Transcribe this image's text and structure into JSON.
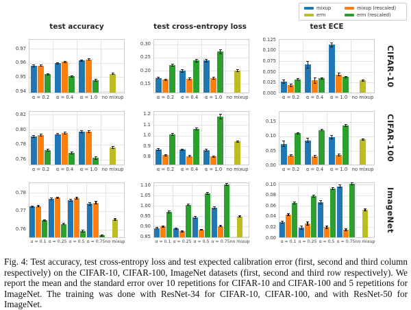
{
  "legend": {
    "items": [
      {
        "label": "mixup",
        "color": "#1f77b4"
      },
      {
        "label": "mixup (rescaled)",
        "color": "#ff7f0e"
      },
      {
        "label": "erm",
        "color": "#bcbd22"
      },
      {
        "label": "erm (rescaled)",
        "color": "#2ca02c"
      }
    ]
  },
  "caption": {
    "text": "Fig. 4: Test accuracy, test cross-entropy loss and test expected calibration error (first, second and third column respectively) on the CIFAR-10, CIFAR-100, ImageNet datasets (first, second and third row respectively). We report the mean and the standard error over 10 repetitions for CIFAR-10 and CIFAR-100 and 5 repetitions for ImageNet. The training was done with ResNet-34 for CIFAR-10, CIFAR-100, and with ResNet-50 for ImageNet."
  },
  "chart_data": [
    {
      "type": "bar",
      "title": "test accuracy",
      "dataset": "CIFAR-10",
      "grid": true,
      "categories": [
        "α = 0.2",
        "α = 0.4",
        "α = 1.0",
        "no mixup"
      ],
      "yticks": [
        0.94,
        0.95,
        0.96,
        0.97
      ],
      "ytick_labels": [
        "0.94",
        "0.95",
        "0.96",
        "0.97"
      ],
      "ylim": [
        0.9386,
        0.9768
      ],
      "series": [
        {
          "name": "mixup",
          "color": "#1f77b4",
          "values": [
            0.958,
            0.9597,
            0.9616,
            null
          ],
          "errors": [
            0.0007,
            0.0006,
            0.0005,
            null
          ]
        },
        {
          "name": "mixup (rescaled)",
          "color": "#ff7f0e",
          "values": [
            0.9582,
            0.9607,
            0.9625,
            null
          ],
          "errors": [
            0.0005,
            0.0005,
            0.0005,
            null
          ]
        },
        {
          "name": "erm (rescaled)",
          "color": "#2ca02c",
          "values": [
            0.952,
            0.9506,
            0.948,
            null
          ],
          "errors": [
            0.0005,
            0.0005,
            0.0007,
            null
          ]
        },
        {
          "name": "erm",
          "color": "#bcbd22",
          "values": [
            null,
            null,
            null,
            0.9523
          ],
          "errors": [
            null,
            null,
            null,
            0.0006
          ]
        }
      ]
    },
    {
      "type": "bar",
      "title": "test cross-entropy loss",
      "dataset": "CIFAR-10",
      "grid": true,
      "categories": [
        "α = 0.2",
        "α = 0.4",
        "α = 1.0",
        "no mixup"
      ],
      "yticks": [
        0.15,
        0.2,
        0.25,
        0.3
      ],
      "ytick_labels": [
        "0.15",
        "0.20",
        "0.25",
        "0.30"
      ],
      "ylim": [
        0.114,
        0.32
      ],
      "series": [
        {
          "name": "mixup",
          "color": "#1f77b4",
          "values": [
            0.172,
            0.199,
            0.239,
            null
          ],
          "errors": [
            0.003,
            0.006,
            0.005,
            null
          ]
        },
        {
          "name": "mixup (rescaled)",
          "color": "#ff7f0e",
          "values": [
            0.165,
            0.168,
            0.171,
            null
          ],
          "errors": [
            0.003,
            0.004,
            0.004,
            null
          ]
        },
        {
          "name": "erm (rescaled)",
          "color": "#2ca02c",
          "values": [
            0.221,
            0.238,
            0.272,
            null
          ],
          "errors": [
            0.003,
            0.004,
            0.007,
            null
          ]
        },
        {
          "name": "erm",
          "color": "#bcbd22",
          "values": [
            null,
            null,
            null,
            0.2
          ],
          "errors": [
            null,
            null,
            null,
            0.004
          ]
        }
      ]
    },
    {
      "type": "bar",
      "title": "test ECE",
      "dataset": "CIFAR-10",
      "grid": true,
      "categories": [
        "α = 0.2",
        "α = 0.4",
        "α = 1.0",
        "no mixup"
      ],
      "yticks": [
        0.0,
        0.025,
        0.05,
        0.075,
        0.1,
        0.125
      ],
      "ytick_labels": [
        "0.000",
        "0.025",
        "0.050",
        "0.075",
        "0.100",
        "0.125"
      ],
      "ylim": [
        0,
        0.127
      ],
      "series": [
        {
          "name": "mixup",
          "color": "#1f77b4",
          "values": [
            0.028,
            0.067,
            0.114,
            null
          ],
          "errors": [
            0.004,
            0.008,
            0.005,
            null
          ]
        },
        {
          "name": "mixup (rescaled)",
          "color": "#ff7f0e",
          "values": [
            0.019,
            0.03,
            0.044,
            null
          ],
          "errors": [
            0.003,
            0.006,
            0.003,
            null
          ]
        },
        {
          "name": "erm (rescaled)",
          "color": "#2ca02c",
          "values": [
            0.033,
            0.035,
            0.038,
            null
          ],
          "errors": [
            0.002,
            0.002,
            0.002,
            null
          ]
        },
        {
          "name": "erm",
          "color": "#bcbd22",
          "values": [
            null,
            null,
            null,
            0.03
          ],
          "errors": [
            null,
            null,
            null,
            0.002
          ]
        }
      ]
    },
    {
      "type": "bar",
      "title": "test accuracy",
      "dataset": "CIFAR-100",
      "grid": true,
      "categories": [
        "α = 0.2",
        "α = 0.4",
        "α = 1.0",
        "no mixup"
      ],
      "yticks": [
        0.76,
        0.78,
        0.8,
        0.82
      ],
      "ytick_labels": [
        "0.76",
        "0.78",
        "0.80",
        "0.82"
      ],
      "ylim": [
        0.7523,
        0.8247
      ],
      "series": [
        {
          "name": "mixup",
          "color": "#1f77b4",
          "values": [
            0.791,
            0.794,
            0.797,
            null
          ],
          "errors": [
            0.0015,
            0.0013,
            0.0013,
            null
          ]
        },
        {
          "name": "mixup (rescaled)",
          "color": "#ff7f0e",
          "values": [
            0.793,
            0.7955,
            0.7975,
            null
          ],
          "errors": [
            0.0013,
            0.0013,
            0.0013,
            null
          ]
        },
        {
          "name": "erm (rescaled)",
          "color": "#2ca02c",
          "values": [
            0.7725,
            0.769,
            0.762,
            null
          ],
          "errors": [
            0.0013,
            0.0015,
            0.0015,
            null
          ]
        },
        {
          "name": "erm",
          "color": "#bcbd22",
          "values": [
            null,
            null,
            null,
            0.776
          ],
          "errors": [
            null,
            null,
            null,
            0.0015
          ]
        }
      ]
    },
    {
      "type": "bar",
      "title": "test cross-entropy loss",
      "dataset": "CIFAR-100",
      "grid": true,
      "categories": [
        "α = 0.2",
        "α = 0.4",
        "α = 1.0",
        "no mixup"
      ],
      "yticks": [
        0.8,
        0.9,
        1.0,
        1.1,
        1.2
      ],
      "ytick_labels": [
        "0.8",
        "0.9",
        "1.0",
        "1.1",
        "1.2"
      ],
      "ylim": [
        0.72,
        1.23
      ],
      "series": [
        {
          "name": "mixup",
          "color": "#1f77b4",
          "values": [
            0.87,
            0.866,
            0.862,
            null
          ],
          "errors": [
            0.008,
            0.008,
            0.008,
            null
          ]
        },
        {
          "name": "mixup (rescaled)",
          "color": "#ff7f0e",
          "values": [
            0.815,
            0.805,
            0.803,
            null
          ],
          "errors": [
            0.006,
            0.006,
            0.006,
            null
          ]
        },
        {
          "name": "erm (rescaled)",
          "color": "#2ca02c",
          "values": [
            1.008,
            1.062,
            1.178,
            null
          ],
          "errors": [
            0.01,
            0.012,
            0.022,
            null
          ]
        },
        {
          "name": "erm",
          "color": "#bcbd22",
          "values": [
            null,
            null,
            null,
            0.944
          ],
          "errors": [
            null,
            null,
            null,
            0.008
          ]
        }
      ]
    },
    {
      "type": "bar",
      "title": "test ECE",
      "dataset": "CIFAR-100",
      "grid": true,
      "categories": [
        "α = 0.2",
        "α = 0.4",
        "α = 1.0",
        "no mixup"
      ],
      "yticks": [
        0.0,
        0.05,
        0.1,
        0.15
      ],
      "ytick_labels": [
        "0.00",
        "0.05",
        "0.10",
        "0.15"
      ],
      "ylim": [
        0,
        0.187
      ],
      "series": [
        {
          "name": "mixup",
          "color": "#1f77b4",
          "values": [
            0.074,
            0.086,
            0.097,
            null
          ],
          "errors": [
            0.009,
            0.007,
            0.005,
            null
          ]
        },
        {
          "name": "mixup (rescaled)",
          "color": "#ff7f0e",
          "values": [
            0.034,
            0.031,
            0.036,
            null
          ],
          "errors": [
            0.003,
            0.003,
            0.003,
            null
          ]
        },
        {
          "name": "erm (rescaled)",
          "color": "#2ca02c",
          "values": [
            0.111,
            0.122,
            0.138,
            null
          ],
          "errors": [
            0.002,
            0.002,
            0.004,
            null
          ]
        },
        {
          "name": "erm",
          "color": "#bcbd22",
          "values": [
            null,
            null,
            null,
            0.089
          ],
          "errors": [
            null,
            null,
            null,
            0.002
          ]
        }
      ]
    },
    {
      "type": "bar",
      "title": "test accuracy",
      "dataset": "ImageNet",
      "grid": true,
      "categories": [
        "α = 0.1",
        "α = 0.25",
        "α = 0.5",
        "α = 0.75",
        "no mixup"
      ],
      "yticks": [
        0.76,
        0.77,
        0.78
      ],
      "ytick_labels": [
        "0.76",
        "0.77",
        "0.78"
      ],
      "ylim": [
        0.7553,
        0.7857
      ],
      "series": [
        {
          "name": "mixup",
          "color": "#1f77b4",
          "values": [
            0.7725,
            0.7766,
            0.776,
            0.774,
            null
          ],
          "errors": [
            0.0004,
            0.0005,
            0.0005,
            0.0008,
            null
          ]
        },
        {
          "name": "mixup (rescaled)",
          "color": "#ff7f0e",
          "values": [
            0.7727,
            0.7773,
            0.7771,
            0.7746,
            null
          ],
          "errors": [
            0.0004,
            0.0005,
            0.0004,
            0.0007,
            null
          ]
        },
        {
          "name": "erm (rescaled)",
          "color": "#2ca02c",
          "values": [
            0.765,
            0.763,
            0.759,
            0.7567,
            null
          ],
          "errors": [
            0.0004,
            0.0005,
            0.0005,
            0.0004,
            null
          ]
        },
        {
          "name": "erm",
          "color": "#bcbd22",
          "values": [
            null,
            null,
            null,
            null,
            0.7655
          ],
          "errors": [
            null,
            null,
            null,
            null,
            0.0005
          ]
        }
      ]
    },
    {
      "type": "bar",
      "title": "test cross-entropy loss",
      "dataset": "ImageNet",
      "grid": true,
      "categories": [
        "α = 0.1",
        "α = 0.25",
        "α = 0.5",
        "α = 0.75",
        "no mixup"
      ],
      "yticks": [
        0.85,
        0.9,
        0.95,
        1.0,
        1.05,
        1.1
      ],
      "ytick_labels": [
        "0.85",
        "0.90",
        "0.95",
        "1.00",
        "1.05",
        "1.10"
      ],
      "ylim": [
        0.844,
        1.113
      ],
      "series": [
        {
          "name": "mixup",
          "color": "#1f77b4",
          "values": [
            0.892,
            0.889,
            0.943,
            0.99,
            null
          ],
          "errors": [
            0.003,
            0.004,
            0.005,
            0.004,
            null
          ]
        },
        {
          "name": "mixup (rescaled)",
          "color": "#ff7f0e",
          "values": [
            0.899,
            0.876,
            0.884,
            0.902,
            null
          ],
          "errors": [
            0.003,
            0.003,
            0.003,
            0.004,
            null
          ]
        },
        {
          "name": "erm (rescaled)",
          "color": "#2ca02c",
          "values": [
            0.97,
            1.005,
            1.06,
            1.103,
            null
          ],
          "errors": [
            0.004,
            0.004,
            0.004,
            0.005,
            null
          ]
        },
        {
          "name": "erm",
          "color": "#bcbd22",
          "values": [
            null,
            null,
            null,
            null,
            0.948
          ],
          "errors": [
            null,
            null,
            null,
            null,
            0.004
          ]
        }
      ]
    },
    {
      "type": "bar",
      "title": "test ECE",
      "dataset": "ImageNet",
      "grid": true,
      "categories": [
        "α = 0.1",
        "α = 0.25",
        "α = 0.5",
        "α = 0.75",
        "no mixup"
      ],
      "yticks": [
        0.0,
        0.02,
        0.04,
        0.06,
        0.08,
        0.1
      ],
      "ytick_labels": [
        "0.00",
        "0.02",
        "0.04",
        "0.06",
        "0.08",
        "0.10"
      ],
      "ylim": [
        0,
        0.104
      ],
      "series": [
        {
          "name": "mixup",
          "color": "#1f77b4",
          "values": [
            0.03,
            0.019,
            0.067,
            0.097,
            null
          ],
          "errors": [
            0.002,
            0.003,
            0.003,
            0.003,
            null
          ]
        },
        {
          "name": "mixup (rescaled)",
          "color": "#ff7f0e",
          "values": [
            0.044,
            0.027,
            0.02,
            0.015,
            null
          ],
          "errors": [
            0.002,
            0.003,
            0.002,
            0.002,
            null
          ]
        },
        {
          "name": "erm (rescaled)",
          "color": "#2ca02c",
          "values": [
            0.065,
            0.078,
            0.093,
            0.102,
            null
          ],
          "errors": [
            0.002,
            0.002,
            0.002,
            0.002,
            null
          ]
        },
        {
          "name": "erm",
          "color": "#bcbd22",
          "values": [
            null,
            null,
            null,
            null,
            0.053
          ],
          "errors": [
            null,
            null,
            null,
            null,
            0.002
          ]
        }
      ]
    }
  ]
}
